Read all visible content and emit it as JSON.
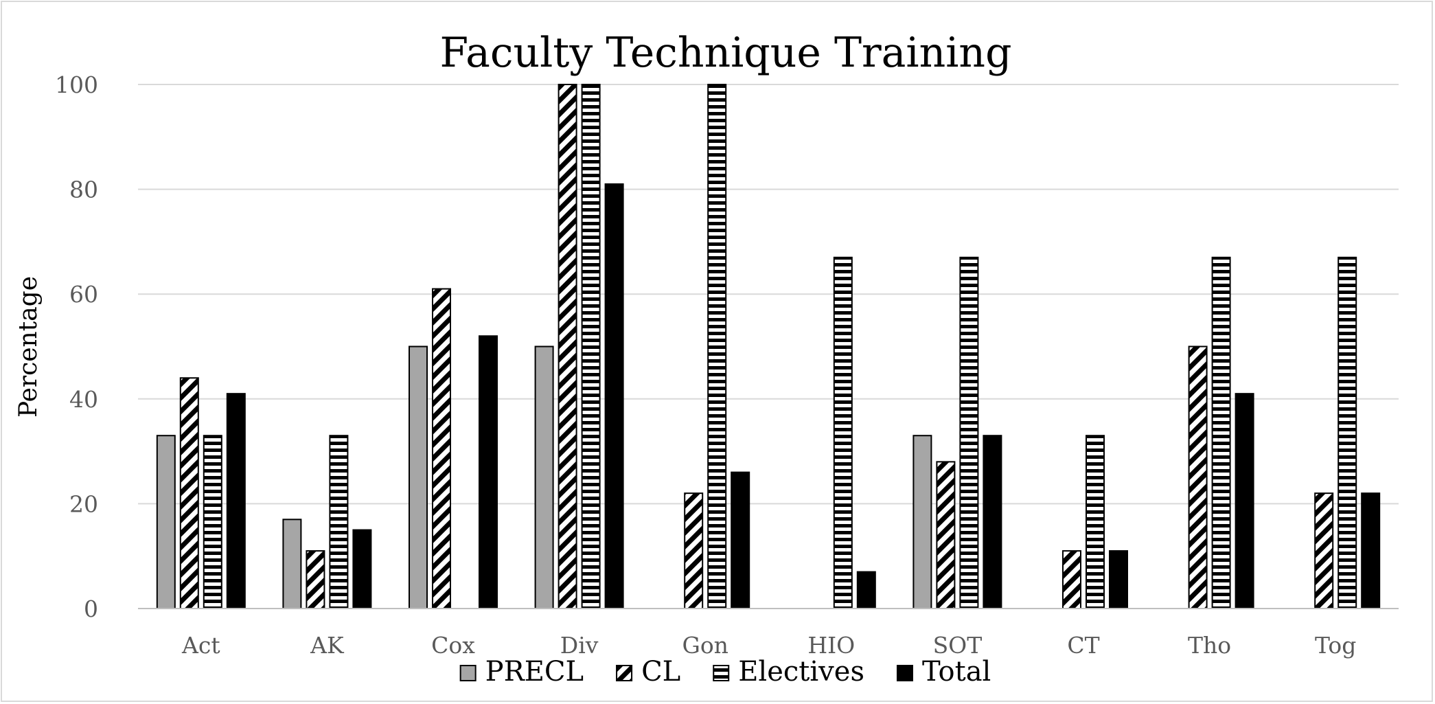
{
  "chart_data": {
    "type": "bar",
    "title": "Faculty Technique Training",
    "xlabel": "",
    "ylabel": "Percentage",
    "ylim": [
      0,
      100
    ],
    "yticks": [
      0,
      20,
      40,
      60,
      80,
      100
    ],
    "grid": true,
    "legend_position": "bottom",
    "categories": [
      "Act",
      "AK",
      "Cox",
      "Div",
      "Gon",
      "HIO",
      "SOT",
      "CT",
      "Tho",
      "Tog"
    ],
    "series": [
      {
        "name": "PRECL",
        "pattern": "solid-gray",
        "color": "#a6a6a6",
        "values": [
          33,
          17,
          50,
          50,
          0,
          0,
          33,
          0,
          0,
          0
        ]
      },
      {
        "name": "CL",
        "pattern": "diagonal-stripes",
        "color": "#000000",
        "values": [
          44,
          11,
          61,
          100,
          22,
          0,
          28,
          11,
          50,
          22
        ]
      },
      {
        "name": "Electives",
        "pattern": "horizontal-stripes",
        "color": "#000000",
        "values": [
          33,
          33,
          0,
          100,
          100,
          67,
          67,
          33,
          67,
          67
        ]
      },
      {
        "name": "Total",
        "pattern": "solid-black",
        "color": "#000000",
        "values": [
          41,
          15,
          52,
          81,
          26,
          7,
          33,
          11,
          41,
          22
        ]
      }
    ]
  }
}
